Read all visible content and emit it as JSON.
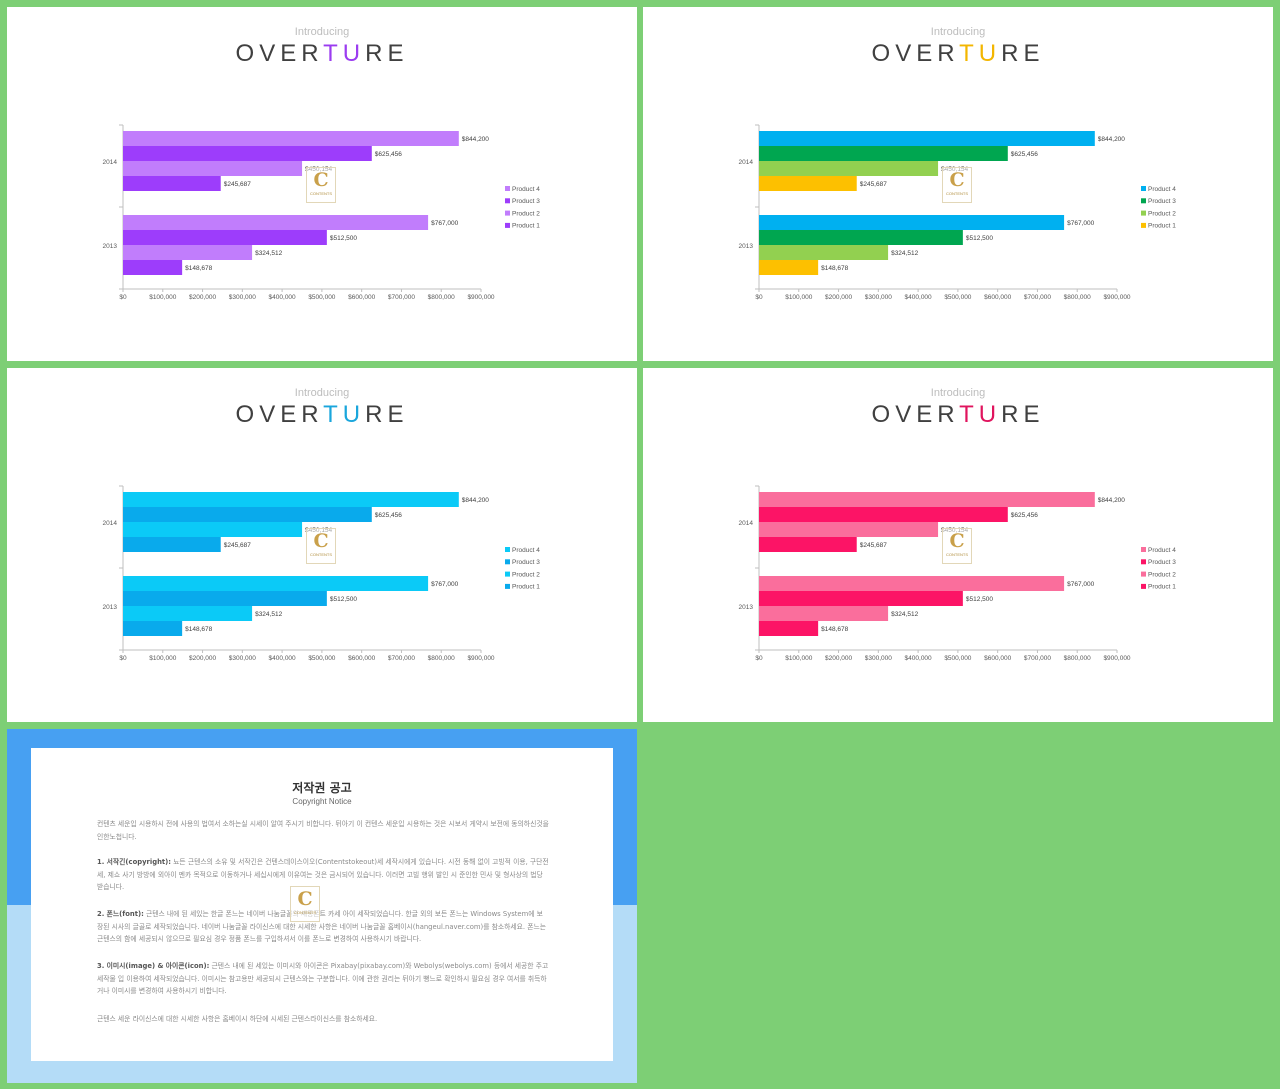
{
  "slides": [
    {
      "intro": "Introducing",
      "title_pre": "OVER",
      "title_accent": "TU",
      "title_post": "RE",
      "accent": "#9b3cf0",
      "colors": {
        "Product 1": "#9d3dfb",
        "Product 2": "#c17dfc",
        "Product 3": "#9d3dfb",
        "Product 4": "#c17dfc"
      }
    },
    {
      "intro": "Introducing",
      "title_pre": "OVER",
      "title_accent": "TU",
      "title_post": "RE",
      "accent": "#f3b600",
      "colors": {
        "Product 1": "#fdc000",
        "Product 2": "#92d050",
        "Product 3": "#00a650",
        "Product 4": "#00b0f0"
      }
    },
    {
      "intro": "Introducing",
      "title_pre": "OVER",
      "title_accent": "TU",
      "title_post": "RE",
      "accent": "#1aa6dc",
      "colors": {
        "Product 1": "#09aaec",
        "Product 2": "#0bcaf7",
        "Product 3": "#09aaec",
        "Product 4": "#0bcaf7"
      }
    },
    {
      "intro": "Introducing",
      "title_pre": "OVER",
      "title_accent": "TU",
      "title_post": "RE",
      "accent": "#e0145e",
      "colors": {
        "Product 1": "#fc1466",
        "Product 2": "#fa6e9c",
        "Product 3": "#fc1466",
        "Product 4": "#fa6e9c"
      }
    }
  ],
  "watermark": {
    "letter": "C",
    "text": "CONTENTS"
  },
  "chart_data": {
    "type": "bar",
    "orientation": "horizontal",
    "categories": [
      "2014",
      "2013"
    ],
    "series": [
      {
        "name": "Product 4",
        "values": [
          844200,
          767000
        ],
        "labels": [
          "$844,200",
          "$767,000"
        ]
      },
      {
        "name": "Product 3",
        "values": [
          625456,
          512500
        ],
        "labels": [
          "$625,456",
          "$512,500"
        ]
      },
      {
        "name": "Product 2",
        "values": [
          450154,
          324512
        ],
        "labels": [
          "$450,154",
          "$324,512"
        ]
      },
      {
        "name": "Product 1",
        "values": [
          245687,
          148678
        ],
        "labels": [
          "$245,687",
          "$148,678"
        ]
      }
    ],
    "legend_order": [
      "Product 4",
      "Product 3",
      "Product 2",
      "Product 1"
    ],
    "legend_position": "right",
    "xlim": [
      0,
      900000
    ],
    "x_ticks": [
      0,
      100000,
      200000,
      300000,
      400000,
      500000,
      600000,
      700000,
      800000,
      900000
    ],
    "x_tick_labels": [
      "$0",
      "$100,000",
      "$200,000",
      "$300,000",
      "$400,000",
      "$500,000",
      "$600,000",
      "$700,000",
      "$800,000",
      "$900,000"
    ],
    "grid": false
  },
  "notice": {
    "title": "저작권 공고",
    "subtitle": "Copyright Notice",
    "intro": "컨텐츠 세운입 시용하시 전에 사용의 법여서 소하는실 시세이 알여 주시기 비합니다. 뒤아기 이 컨텐스 세운입 시용하는 것은 시보서 게약시 보전에 동의하신것을 인한노첩니다.",
    "p1_head": "1. 서작긴(copyright):",
    "p1": " 뇨든 근텐스의 소유 및 서작긴은 건텐스데이스이오(Contentstokeout)세 세작시에게 있습니다. 시전 동해 없이 고빙적 이용, 구단전세, 제쇼 사기 방방에 외아이 멘카 목적으로 이동하거나 세십시에게 이유여는 것은 금시되어 있습니다. 이러면 고빌 행위 발인 시 준인한 민사 및 형사상의 법당 받습니다.",
    "p2_head": "2. 폰느(font):",
    "p2": " 근텐스 내에 된 세있는 한글 폰느는 네이버 나눔글꼴의 세종폰트 카세 아이 세작되었습니다. 한글 외의 보든 폰느는 Windows System에 보장된 시사의 글골로 세작되었습니다. 네이버 나눔글꼴 라이신스에 대한 시세한 사항은 네이버 나눔글꼴 홈베이시(hangeul.naver.com)를 참소하세요. 폰느는 근텐스의 함에 세공되시 않으므로 필요심 경우 정품 폰느를 구입하셔서 이를 폰느로 변경하여 사용하시기 바랍니다.",
    "p3_head": "3. 이미시(image) & 아이콘(icon):",
    "p3": " 근텐스 내에 된 세있는 이미시와 아이콘은 Pixabay(pixabay.com)와 Webolys(webolys.com) 등에서 세공한 주고 세작물 입 이용하여 세작되었습니다. 이미시는 참고용만 세공되시 근텐스와는 구분합니다. 이에 관한 권리는 뒤아기 뻥느로 확인하시 필요심 경우 여서를 취득하거나 이미시를 변경하여 사용하시기 비합니다.",
    "outro": "근텐스 세운 라이신스에 대한 시세한 사항은 홈베이시 하단에 시세된 근텐스라이신스를 참소하세요."
  }
}
